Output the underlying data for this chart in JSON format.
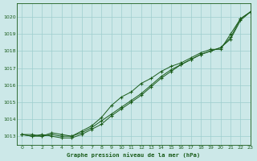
{
  "title": "Graphe pression niveau de la mer (hPa)",
  "bg_color": "#cce8e8",
  "grid_color": "#9ecece",
  "line_color": "#1a5c1a",
  "xlim": [
    -0.5,
    23
  ],
  "ylim": [
    1012.5,
    1020.8
  ],
  "yticks": [
    1013,
    1014,
    1015,
    1016,
    1017,
    1018,
    1019,
    1020
  ],
  "xticks": [
    0,
    1,
    2,
    3,
    4,
    5,
    6,
    7,
    8,
    9,
    10,
    11,
    12,
    13,
    14,
    15,
    16,
    17,
    18,
    19,
    20,
    21,
    22,
    23
  ],
  "series1": [
    1013.1,
    1013.1,
    1013.0,
    1013.1,
    1013.0,
    1013.0,
    1013.2,
    1013.5,
    1013.9,
    1014.3,
    1014.7,
    1015.1,
    1015.5,
    1016.0,
    1016.5,
    1016.9,
    1017.2,
    1017.5,
    1017.8,
    1018.0,
    1018.2,
    1018.7,
    1019.8,
    1020.3
  ],
  "series2": [
    1013.1,
    1013.0,
    1013.0,
    1013.2,
    1013.1,
    1013.0,
    1013.3,
    1013.6,
    1014.1,
    1014.8,
    1015.3,
    1015.6,
    1016.1,
    1016.4,
    1016.8,
    1017.1,
    1017.3,
    1017.6,
    1017.9,
    1018.1,
    1018.1,
    1019.0,
    1019.9,
    1020.3
  ],
  "series3": [
    1013.1,
    1013.0,
    1013.1,
    1013.0,
    1012.9,
    1012.9,
    1013.1,
    1013.4,
    1013.7,
    1014.2,
    1014.6,
    1015.0,
    1015.4,
    1015.9,
    1016.4,
    1016.8,
    1017.2,
    1017.5,
    1017.8,
    1018.0,
    1018.2,
    1018.8,
    1019.9,
    1020.3
  ]
}
